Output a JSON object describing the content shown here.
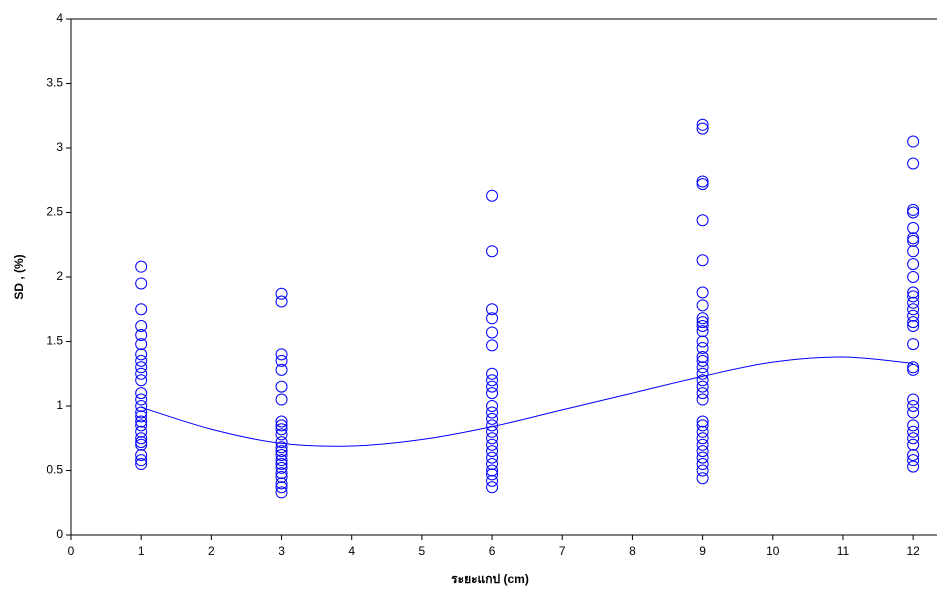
{
  "chart_data": {
    "type": "scatter",
    "x_label": "ระยะแกป (cm)",
    "y_label": "SD , (%)",
    "xlim": [
      0,
      12.34
    ],
    "ylim": [
      0,
      4
    ],
    "xticks": [
      0,
      1,
      2,
      3,
      4,
      5,
      6,
      7,
      8,
      9,
      10,
      11,
      12
    ],
    "yticks": [
      0,
      0.5,
      1,
      1.5,
      2,
      2.5,
      3,
      3.5,
      4
    ],
    "series": [
      {
        "type": "scatter",
        "color": "#0000ff",
        "x": [
          1,
          1,
          1,
          1,
          1,
          1,
          1,
          1,
          1,
          1,
          1,
          1,
          1,
          1,
          1,
          1,
          1,
          1,
          1,
          1,
          1,
          1,
          1,
          1,
          1,
          3,
          3,
          3,
          3,
          3,
          3,
          3,
          3,
          3,
          3,
          3,
          3,
          3,
          3,
          3,
          3,
          3,
          3,
          3,
          3,
          3,
          3,
          3,
          6,
          6,
          6,
          6,
          6,
          6,
          6,
          6,
          6,
          6,
          6,
          6,
          6,
          6,
          6,
          6,
          6,
          6,
          6,
          6,
          6,
          6,
          6,
          6,
          9,
          9,
          9,
          9,
          9,
          9,
          9,
          9,
          9,
          9,
          9,
          9,
          9,
          9,
          9,
          9,
          9,
          9,
          9,
          9,
          9,
          9,
          9,
          9,
          9,
          9,
          9,
          9,
          9,
          9,
          9,
          9,
          12,
          12,
          12,
          12,
          12,
          12,
          12,
          12,
          12,
          12,
          12,
          12,
          12,
          12,
          12,
          12,
          12,
          12,
          12,
          12,
          12,
          12,
          12,
          12,
          12,
          12,
          12,
          12,
          12,
          12
        ],
        "values": [
          2.08,
          1.95,
          1.75,
          1.62,
          1.55,
          1.48,
          1.4,
          1.35,
          1.3,
          1.25,
          1.2,
          1.1,
          1.05,
          1.0,
          0.95,
          0.92,
          0.88,
          0.85,
          0.8,
          0.75,
          0.72,
          0.7,
          0.62,
          0.58,
          0.55,
          1.87,
          1.81,
          1.4,
          1.35,
          1.28,
          1.15,
          1.05,
          0.88,
          0.85,
          0.82,
          0.78,
          0.72,
          0.68,
          0.65,
          0.62,
          0.58,
          0.55,
          0.52,
          0.48,
          0.45,
          0.4,
          0.37,
          0.33,
          2.63,
          2.2,
          1.75,
          1.68,
          1.57,
          1.47,
          1.25,
          1.2,
          1.15,
          1.1,
          1.0,
          0.95,
          0.9,
          0.85,
          0.8,
          0.75,
          0.7,
          0.65,
          0.6,
          0.55,
          0.5,
          0.47,
          0.42,
          0.37,
          3.18,
          3.15,
          2.74,
          2.72,
          2.44,
          2.13,
          1.88,
          1.78,
          1.68,
          1.65,
          1.62,
          1.58,
          1.5,
          1.45,
          1.38,
          1.35,
          1.3,
          1.25,
          1.2,
          1.15,
          1.1,
          1.05,
          0.88,
          0.85,
          0.8,
          0.75,
          0.7,
          0.65,
          0.6,
          0.55,
          0.5,
          0.44,
          3.05,
          2.88,
          2.52,
          2.5,
          2.38,
          2.3,
          2.28,
          2.2,
          2.1,
          2.0,
          1.88,
          1.85,
          1.8,
          1.75,
          1.7,
          1.65,
          1.62,
          1.48,
          1.3,
          1.28,
          1.05,
          1.0,
          0.95,
          0.85,
          0.8,
          0.75,
          0.7,
          0.62,
          0.58,
          0.53
        ]
      },
      {
        "type": "line",
        "color": "#0000ff",
        "x": [
          1,
          2,
          3,
          4,
          5,
          6,
          7,
          8,
          9,
          10,
          11,
          12
        ],
        "values": [
          0.99,
          0.82,
          0.71,
          0.69,
          0.74,
          0.84,
          0.97,
          1.1,
          1.23,
          1.34,
          1.38,
          1.33
        ]
      }
    ]
  }
}
